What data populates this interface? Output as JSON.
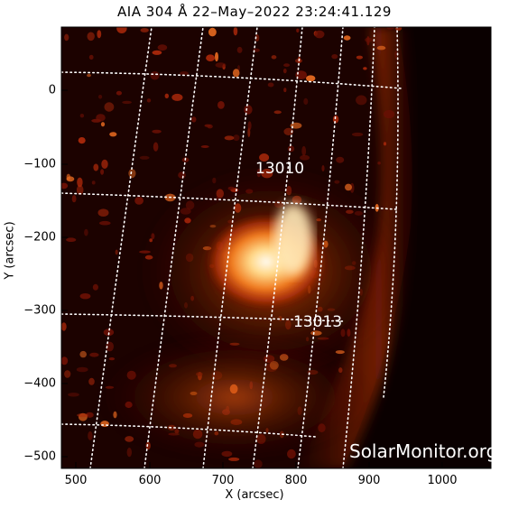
{
  "title": "AIA 304 Å 22–May–2022 23:24:41.129",
  "x_axis": {
    "label": "X (arcsec)",
    "ticks": [
      "500",
      "600",
      "700",
      "800",
      "900",
      "1000"
    ]
  },
  "y_axis": {
    "label": "Y (arcsec)",
    "ticks": [
      "0",
      "−100",
      "−200",
      "−300",
      "−400",
      "−500"
    ]
  },
  "regions": [
    {
      "label": "13010"
    },
    {
      "label": "13013"
    }
  ],
  "watermark": "SolarMonitor.org",
  "colors": {
    "background": "#ffffff",
    "image_dark": "#0a0000",
    "plasma": "#c83a08",
    "flare": "#fff2cc",
    "grid": "#ffffff"
  }
}
